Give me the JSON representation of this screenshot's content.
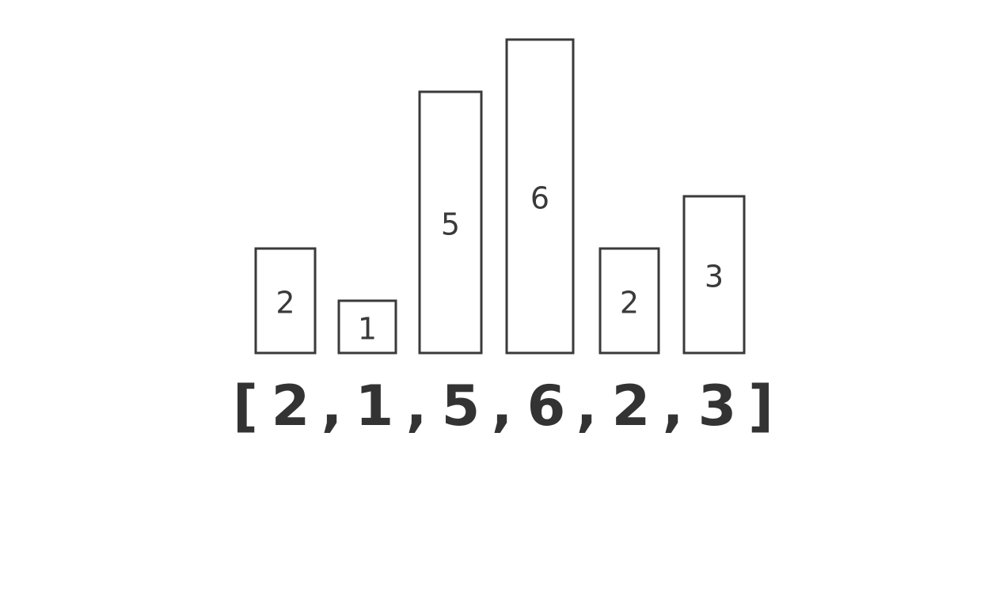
{
  "chart_data": {
    "type": "bar",
    "categories": [
      "",
      "",
      "",
      "",
      "",
      ""
    ],
    "values": [
      2,
      1,
      5,
      6,
      2,
      3
    ],
    "bar_labels": [
      "2",
      "1",
      "5",
      "6",
      "2",
      "3"
    ],
    "array_text": {
      "open": "[",
      "close": "]",
      "separator": ",",
      "items": [
        "2",
        "1",
        "5",
        "6",
        "2",
        "3"
      ]
    },
    "title": "",
    "xlabel": "",
    "ylabel": "",
    "ylim": [
      0,
      6
    ],
    "grid": false,
    "legend": "none",
    "colors": {
      "stroke": "#3a3a3a",
      "fill": "#ffffff",
      "text": "#333333"
    }
  }
}
